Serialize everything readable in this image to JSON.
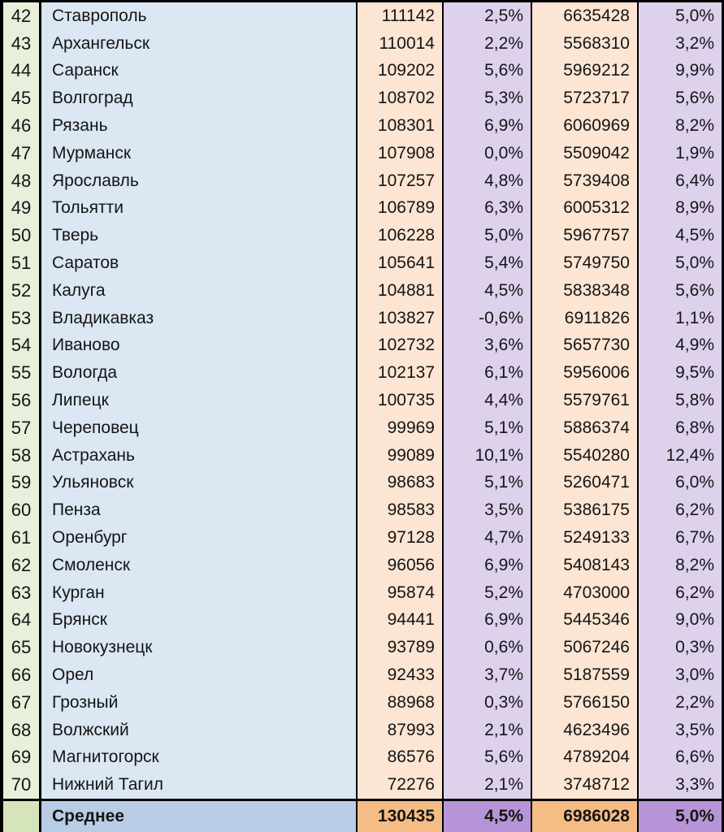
{
  "colors": {
    "grid": "#000000",
    "text": "#151515",
    "body": {
      "rank": "#e6f0da",
      "city": "#dbe7f3",
      "value": "#fce5d3",
      "pct": "#ddd1ec"
    },
    "average": {
      "rank": "#d6e4bc",
      "city": "#b9cde6",
      "value": "#f6bc85",
      "pct": "#b793d8"
    }
  },
  "chart_data": {
    "type": "table",
    "columns": [
      "rank",
      "city",
      "value1",
      "value1_pct",
      "value2",
      "value2_pct"
    ],
    "rows": [
      [
        "42",
        "Ставрополь",
        "111142",
        "2,5%",
        "6635428",
        "5,0%"
      ],
      [
        "43",
        "Архангельск",
        "110014",
        "2,2%",
        "5568310",
        "3,2%"
      ],
      [
        "44",
        "Саранск",
        "109202",
        "5,6%",
        "5969212",
        "9,9%"
      ],
      [
        "45",
        "Волгоград",
        "108702",
        "5,3%",
        "5723717",
        "5,6%"
      ],
      [
        "46",
        "Рязань",
        "108301",
        "6,9%",
        "6060969",
        "8,2%"
      ],
      [
        "47",
        "Мурманск",
        "107908",
        "0,0%",
        "5509042",
        "1,9%"
      ],
      [
        "48",
        "Ярославль",
        "107257",
        "4,8%",
        "5739408",
        "6,4%"
      ],
      [
        "49",
        "Тольятти",
        "106789",
        "6,3%",
        "6005312",
        "8,9%"
      ],
      [
        "50",
        "Тверь",
        "106228",
        "5,0%",
        "5967757",
        "4,5%"
      ],
      [
        "51",
        "Саратов",
        "105641",
        "5,4%",
        "5749750",
        "5,0%"
      ],
      [
        "52",
        "Калуга",
        "104881",
        "4,5%",
        "5838348",
        "5,6%"
      ],
      [
        "53",
        "Владикавказ",
        "103827",
        "-0,6%",
        "6911826",
        "1,1%"
      ],
      [
        "54",
        "Иваново",
        "102732",
        "3,6%",
        "5657730",
        "4,9%"
      ],
      [
        "55",
        "Вологда",
        "102137",
        "6,1%",
        "5956006",
        "9,5%"
      ],
      [
        "56",
        "Липецк",
        "100735",
        "4,4%",
        "5579761",
        "5,8%"
      ],
      [
        "57",
        "Череповец",
        "99969",
        "5,1%",
        "5886374",
        "6,8%"
      ],
      [
        "58",
        "Астрахань",
        "99089",
        "10,1%",
        "5540280",
        "12,4%"
      ],
      [
        "59",
        "Ульяновск",
        "98683",
        "5,1%",
        "5260471",
        "6,0%"
      ],
      [
        "60",
        "Пенза",
        "98583",
        "3,5%",
        "5386175",
        "6,2%"
      ],
      [
        "61",
        "Оренбург",
        "97128",
        "4,7%",
        "5249133",
        "6,7%"
      ],
      [
        "62",
        "Смоленск",
        "96056",
        "6,9%",
        "5408143",
        "8,2%"
      ],
      [
        "63",
        "Курган",
        "95874",
        "5,2%",
        "4703000",
        "6,2%"
      ],
      [
        "64",
        "Брянск",
        "94441",
        "6,9%",
        "5445346",
        "9,0%"
      ],
      [
        "65",
        "Новокузнецк",
        "93789",
        "0,6%",
        "5067246",
        "0,3%"
      ],
      [
        "66",
        "Орел",
        "92433",
        "3,7%",
        "5187559",
        "3,0%"
      ],
      [
        "67",
        "Грозный",
        "88968",
        "0,3%",
        "5766150",
        "2,2%"
      ],
      [
        "68",
        "Волжский",
        "87993",
        "2,1%",
        "4623496",
        "3,5%"
      ],
      [
        "69",
        "Магнитогорск",
        "86576",
        "5,6%",
        "4789204",
        "6,6%"
      ],
      [
        "70",
        "Нижний Тагил",
        "72276",
        "2,1%",
        "3748712",
        "3,3%"
      ]
    ],
    "average_row": {
      "label": "Среднее",
      "value1": "130435",
      "value1_pct": "4,5%",
      "value2": "6986028",
      "value2_pct": "5,0%"
    }
  }
}
